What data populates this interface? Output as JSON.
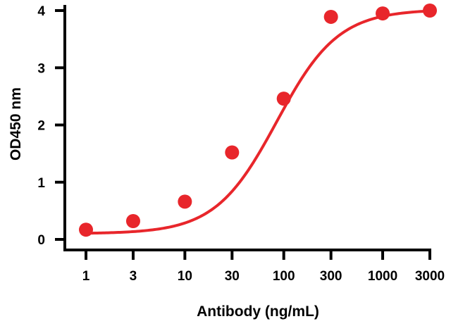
{
  "chart_data": {
    "type": "scatter",
    "title": "",
    "xlabel": "Antibody (ng/mL)",
    "ylabel": "OD450 nm",
    "x_scale": "log",
    "xlim": [
      0.8,
      3300
    ],
    "ylim": [
      0,
      4
    ],
    "x_ticks": [
      1,
      3,
      10,
      30,
      100,
      300,
      1000,
      3000
    ],
    "x_tick_labels": [
      "1",
      "3",
      "10",
      "30",
      "100",
      "300",
      "1000",
      "3000"
    ],
    "y_ticks": [
      0,
      1,
      2,
      3,
      4
    ],
    "y_tick_labels": [
      "0",
      "1",
      "2",
      "3",
      "4"
    ],
    "grid": false,
    "legend": "none",
    "series": [
      {
        "color": "#e8262b",
        "x": [
          1,
          3,
          10,
          30,
          100,
          300,
          1000,
          3000
        ],
        "y": [
          0.17,
          0.32,
          0.66,
          1.52,
          2.46,
          3.89,
          3.95,
          4.0
        ]
      }
    ],
    "fit_curve": {
      "model": "4PL",
      "color": "#e8262b",
      "bottom": 0.1,
      "top": 4.02,
      "ec50": 85,
      "hill": 1.4
    }
  }
}
